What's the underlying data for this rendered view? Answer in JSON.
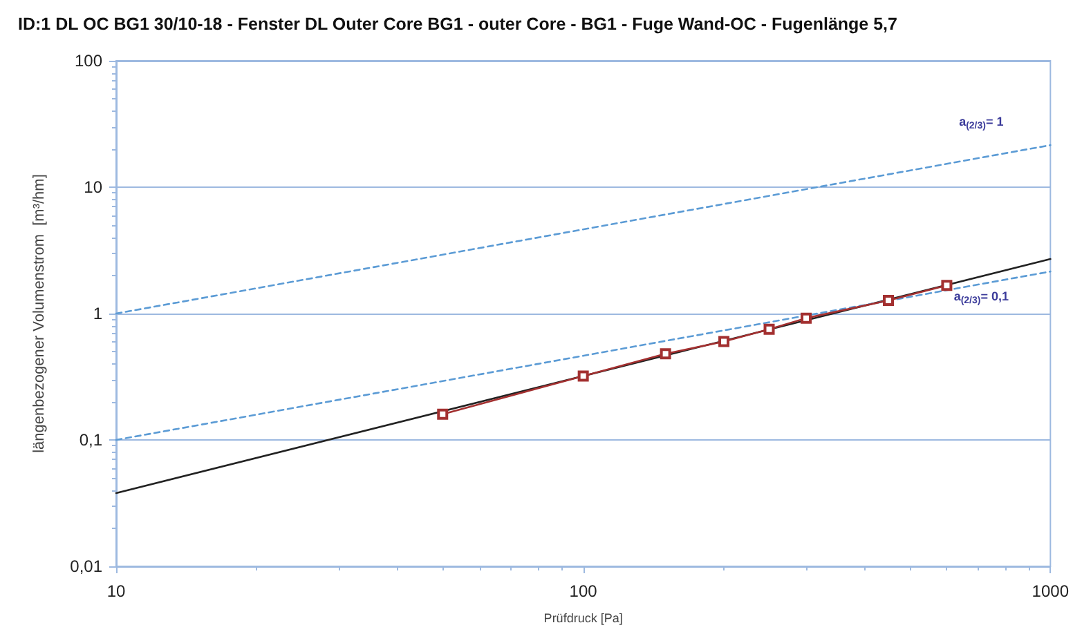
{
  "chart_data": {
    "type": "line",
    "title": "ID:1 DL OC BG1 30/10-18 - Fenster DL Outer Core BG1 - outer Core - BG1 - Fuge Wand-OC - Fugenlänge 5,7",
    "xlabel": "Prüfdruck [Pa]",
    "ylabel": "längenbezogener Volumenstrom  [m³/hm]",
    "series": [
      {
        "color": "#a33030",
        "marker": "square",
        "x": [
          50,
          100,
          150,
          200,
          250,
          300,
          450,
          600
        ],
        "values": [
          0.16,
          0.32,
          0.48,
          0.6,
          0.75,
          0.92,
          1.27,
          1.67
        ]
      },
      {
        "color": "#222222",
        "marker": "none",
        "x": [
          10,
          1000
        ],
        "values": [
          0.038,
          2.7
        ]
      },
      {
        "color": "#5b9bd5",
        "marker": "none",
        "line_style": "dashed",
        "x": [
          10,
          1000
        ],
        "values": [
          1,
          21.5
        ]
      },
      {
        "color": "#5b9bd5",
        "marker": "none",
        "line_style": "dashed",
        "x": [
          10,
          1000
        ],
        "values": [
          0.1,
          2.15
        ]
      }
    ],
    "annotations": [
      "a$_{(2/3)}$= 1",
      "a$_{(2/3)}$= 0,1"
    ],
    "log": "xy",
    "xlim": [
      10,
      1000
    ],
    "xticks": [
      10,
      100,
      1000
    ],
    "ylim": [
      0.01,
      100
    ],
    "yticks": [
      {
        "value": 0.01,
        "label": "0,01"
      },
      {
        "value": 0.1,
        "label": "0,1"
      },
      {
        "value": 1,
        "label": "1"
      },
      {
        "value": 10,
        "label": "10"
      },
      {
        "value": 100,
        "label": "100"
      }
    ],
    "grid": "y"
  }
}
